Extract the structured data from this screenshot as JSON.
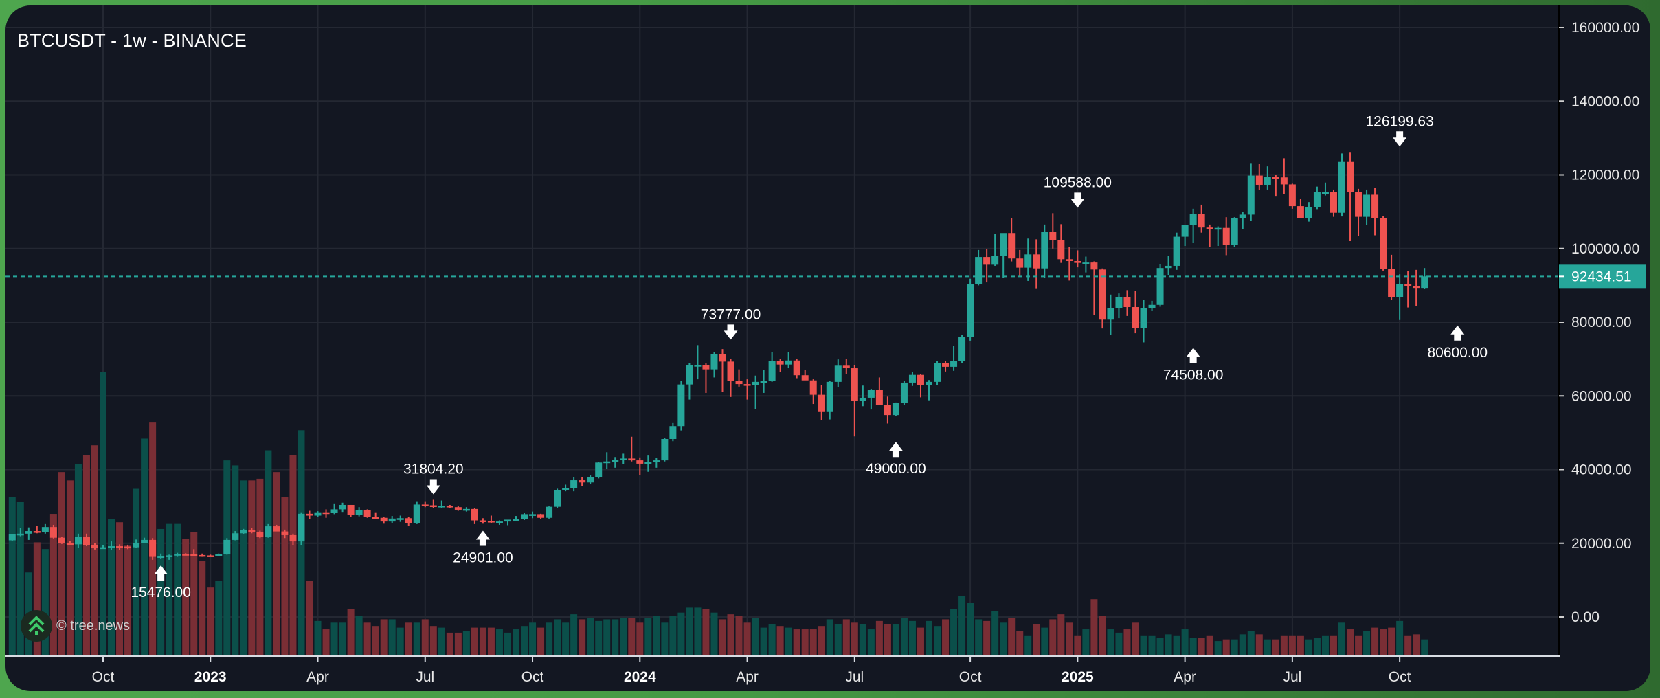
{
  "header": {
    "title": "BTCUSDT - 1w - BINANCE"
  },
  "watermark": {
    "icon": "double-chevron-up-tree-icon",
    "text": "© tree.news"
  },
  "colors": {
    "up": "#26a69a",
    "down": "#ef5350",
    "vol_up": "#0b4f4a",
    "vol_down": "#7a2e35",
    "background": "#131722",
    "grid": "#242833",
    "price_line": "#26a69a"
  },
  "price_tag": {
    "value": "92434.51",
    "numeric": 92434.51
  },
  "chart_data": {
    "type": "candlestick",
    "title": "BTCUSDT - 1w - BINANCE",
    "xlabel": "",
    "ylabel": "",
    "ylim": [
      -10000,
      170000
    ],
    "grid": true,
    "y_ticks": [
      {
        "value": 160000,
        "label": "160000.00"
      },
      {
        "value": 140000,
        "label": "140000.00"
      },
      {
        "value": 120000,
        "label": "120000.00"
      },
      {
        "value": 100000,
        "label": "100000.00"
      },
      {
        "value": 80000,
        "label": "80000.00"
      },
      {
        "value": 60000,
        "label": "60000.00"
      },
      {
        "value": 40000,
        "label": "40000.00"
      },
      {
        "value": 20000,
        "label": "20000.00"
      },
      {
        "value": 0,
        "label": "0.00"
      }
    ],
    "x_ticks": [
      {
        "label": "Oct",
        "index": 11,
        "year": false
      },
      {
        "label": "2023",
        "index": 24,
        "year": true
      },
      {
        "label": "Apr",
        "index": 37,
        "year": false
      },
      {
        "label": "Jul",
        "index": 50,
        "year": false
      },
      {
        "label": "Oct",
        "index": 63,
        "year": false
      },
      {
        "label": "2024",
        "index": 76,
        "year": true
      },
      {
        "label": "Apr",
        "index": 89,
        "year": false
      },
      {
        "label": "Jul",
        "index": 102,
        "year": false
      },
      {
        "label": "Oct",
        "index": 116,
        "year": false
      },
      {
        "label": "2025",
        "index": 129,
        "year": true
      },
      {
        "label": "Apr",
        "index": 142,
        "year": false
      },
      {
        "label": "Jul",
        "index": 155,
        "year": false
      },
      {
        "label": "Oct",
        "index": 168,
        "year": false
      }
    ],
    "annotations": [
      {
        "label": "15476.00",
        "index": 18,
        "price": 15476,
        "dir": "low"
      },
      {
        "label": "31804.20",
        "index": 51,
        "price": 31804.2,
        "dir": "high"
      },
      {
        "label": "24901.00",
        "index": 57,
        "price": 24901,
        "dir": "low"
      },
      {
        "label": "73777.00",
        "index": 87,
        "price": 73777,
        "dir": "high"
      },
      {
        "label": "49000.00",
        "index": 107,
        "price": 49000,
        "dir": "low"
      },
      {
        "label": "109588.00",
        "index": 129,
        "price": 109588,
        "dir": "high"
      },
      {
        "label": "74508.00",
        "index": 143,
        "price": 74508,
        "dir": "low"
      },
      {
        "label": "126199.63",
        "index": 168,
        "price": 126199.63,
        "dir": "high"
      },
      {
        "label": "80600.00",
        "index": 175,
        "price": 80600,
        "dir": "low"
      }
    ],
    "last_price": 92434.51,
    "series_columns": [
      "open",
      "high",
      "low",
      "close",
      "volume"
    ],
    "ohlcv": [
      [
        20800,
        22400,
        20700,
        22500,
        95
      ],
      [
        22500,
        24200,
        21900,
        22600,
        92
      ],
      [
        22600,
        24300,
        20900,
        23300,
        50
      ],
      [
        23300,
        24700,
        22700,
        23000,
        68
      ],
      [
        23000,
        25200,
        22600,
        24400,
        64
      ],
      [
        24400,
        25000,
        21300,
        21500,
        85
      ],
      [
        21500,
        21800,
        19800,
        20000,
        110
      ],
      [
        20000,
        20600,
        19400,
        19700,
        105
      ],
      [
        19700,
        22600,
        18700,
        21700,
        115
      ],
      [
        21700,
        22600,
        19200,
        19400,
        120
      ],
      [
        19400,
        20000,
        18300,
        18800,
        126
      ],
      [
        18800,
        19400,
        18700,
        18900,
        170
      ],
      [
        18900,
        20500,
        18100,
        19200,
        82
      ],
      [
        19200,
        19700,
        18200,
        19100,
        80
      ],
      [
        19100,
        19600,
        18400,
        18900,
        66
      ],
      [
        18900,
        21000,
        18700,
        20100,
        100
      ],
      [
        20100,
        21500,
        20000,
        20900,
        130
      ],
      [
        20900,
        21400,
        15500,
        16300,
        140
      ],
      [
        16300,
        17200,
        15700,
        16500,
        76
      ],
      [
        16500,
        16900,
        15500,
        16700,
        79
      ],
      [
        16700,
        17400,
        16300,
        17100,
        79
      ],
      [
        17100,
        17300,
        16800,
        17000,
        70
      ],
      [
        17000,
        18400,
        16500,
        16800,
        74
      ],
      [
        16800,
        17200,
        16300,
        16700,
        57
      ],
      [
        16700,
        16900,
        16300,
        16600,
        41
      ],
      [
        16600,
        17200,
        16500,
        17000,
        45
      ],
      [
        17000,
        21400,
        16900,
        20900,
        117
      ],
      [
        20900,
        23300,
        20800,
        22700,
        114
      ],
      [
        22700,
        23900,
        22500,
        23500,
        105
      ],
      [
        23500,
        24200,
        22700,
        23000,
        105
      ],
      [
        23000,
        23400,
        21400,
        21800,
        106
      ],
      [
        21800,
        25200,
        21500,
        24600,
        123
      ],
      [
        24600,
        25000,
        23400,
        23200,
        110
      ],
      [
        23200,
        23700,
        21400,
        22200,
        95
      ],
      [
        22200,
        22600,
        19500,
        20500,
        120
      ],
      [
        20500,
        28400,
        19500,
        28000,
        135
      ],
      [
        28000,
        28800,
        26600,
        27500,
        45
      ],
      [
        27500,
        28700,
        27200,
        28400,
        21
      ],
      [
        28400,
        29200,
        26900,
        28200,
        16
      ],
      [
        28200,
        30800,
        27900,
        29200,
        20
      ],
      [
        29200,
        31000,
        28500,
        30400,
        20
      ],
      [
        30400,
        30400,
        27100,
        27600,
        28
      ],
      [
        27600,
        29800,
        27300,
        29000,
        24
      ],
      [
        29000,
        29200,
        26900,
        27100,
        20
      ],
      [
        27100,
        28400,
        26700,
        26900,
        18
      ],
      [
        26900,
        27200,
        25300,
        25900,
        22
      ],
      [
        25900,
        27400,
        25500,
        26700,
        22
      ],
      [
        26700,
        27500,
        25800,
        26800,
        17
      ],
      [
        26800,
        27100,
        24800,
        25400,
        20
      ],
      [
        25400,
        31400,
        25200,
        30500,
        20
      ],
      [
        30500,
        31400,
        29800,
        30300,
        22
      ],
      [
        30300,
        31800,
        29500,
        30000,
        18
      ],
      [
        30000,
        31600,
        29600,
        30200,
        17
      ],
      [
        30200,
        30400,
        29500,
        29800,
        14
      ],
      [
        29800,
        30100,
        28800,
        29100,
        14
      ],
      [
        29100,
        29800,
        28600,
        29300,
        15
      ],
      [
        29300,
        29500,
        25200,
        26200,
        17
      ],
      [
        26200,
        26800,
        25300,
        26100,
        17
      ],
      [
        26100,
        27500,
        25500,
        25800,
        17
      ],
      [
        25800,
        26200,
        25000,
        25900,
        16
      ],
      [
        25900,
        26300,
        24900,
        26400,
        14
      ],
      [
        26400,
        27400,
        26200,
        26500,
        16
      ],
      [
        26500,
        28300,
        26300,
        27900,
        18
      ],
      [
        27900,
        28600,
        26800,
        27900,
        20
      ],
      [
        27900,
        28000,
        26600,
        26900,
        17
      ],
      [
        26900,
        30000,
        26700,
        29900,
        20
      ],
      [
        29900,
        34800,
        29600,
        34500,
        22
      ],
      [
        34500,
        35900,
        34100,
        35000,
        20
      ],
      [
        35000,
        37900,
        34100,
        37100,
        25
      ],
      [
        37100,
        37900,
        35500,
        36500,
        22
      ],
      [
        36500,
        38400,
        36100,
        37900,
        23
      ],
      [
        37900,
        42000,
        37600,
        41900,
        21
      ],
      [
        41900,
        44700,
        40100,
        42200,
        22
      ],
      [
        42200,
        43400,
        40500,
        42600,
        22
      ],
      [
        42600,
        44300,
        41500,
        43000,
        23
      ],
      [
        43000,
        48900,
        42200,
        42500,
        23
      ],
      [
        42500,
        43300,
        38500,
        41600,
        20
      ],
      [
        41600,
        43800,
        39400,
        42000,
        23
      ],
      [
        42000,
        43200,
        40500,
        42500,
        24
      ],
      [
        42500,
        48500,
        42200,
        48300,
        20
      ],
      [
        48300,
        52800,
        47700,
        51800,
        24
      ],
      [
        51800,
        64000,
        50600,
        63100,
        26
      ],
      [
        63100,
        69000,
        59000,
        68300,
        29
      ],
      [
        68300,
        73777,
        64500,
        68400,
        29
      ],
      [
        68400,
        68800,
        60800,
        67200,
        28
      ],
      [
        67200,
        71800,
        65000,
        71300,
        26
      ],
      [
        71300,
        72700,
        61000,
        69300,
        22
      ],
      [
        69300,
        70000,
        59700,
        64000,
        25
      ],
      [
        64000,
        67200,
        62500,
        63200,
        24
      ],
      [
        63200,
        64500,
        59000,
        62900,
        20
      ],
      [
        62900,
        65500,
        56500,
        63800,
        23
      ],
      [
        63800,
        67000,
        60800,
        64000,
        17
      ],
      [
        64000,
        71900,
        63800,
        69400,
        19
      ],
      [
        69400,
        70000,
        66400,
        68500,
        18
      ],
      [
        68500,
        71900,
        67500,
        69600,
        17
      ],
      [
        69600,
        70000,
        64800,
        65600,
        16
      ],
      [
        65600,
        67000,
        64500,
        64200,
        16
      ],
      [
        64200,
        64500,
        57800,
        60300,
        16
      ],
      [
        60300,
        63000,
        53500,
        55800,
        18
      ],
      [
        55800,
        64000,
        53600,
        63800,
        22
      ],
      [
        63800,
        69900,
        62400,
        68200,
        19
      ],
      [
        68200,
        70000,
        65900,
        67500,
        22
      ],
      [
        67500,
        68300,
        49000,
        58700,
        20
      ],
      [
        58700,
        62800,
        57200,
        59500,
        19
      ],
      [
        59500,
        61900,
        56300,
        61700,
        16
      ],
      [
        61700,
        65000,
        57800,
        57600,
        21
      ],
      [
        57600,
        59800,
        52500,
        54800,
        19
      ],
      [
        54800,
        58200,
        54600,
        58000,
        19
      ],
      [
        58000,
        64000,
        57500,
        63600,
        23
      ],
      [
        63600,
        66500,
        62700,
        65700,
        21
      ],
      [
        65700,
        66000,
        59600,
        63000,
        17
      ],
      [
        63000,
        64300,
        58800,
        63800,
        21
      ],
      [
        63800,
        69500,
        63000,
        68900,
        18
      ],
      [
        68900,
        69500,
        66600,
        67900,
        22
      ],
      [
        67900,
        73600,
        66800,
        69500,
        28
      ],
      [
        69500,
        76500,
        69000,
        75900,
        36
      ],
      [
        75900,
        91800,
        75000,
        90300,
        32
      ],
      [
        90300,
        99600,
        90000,
        97700,
        22
      ],
      [
        97700,
        99900,
        90800,
        95600,
        21
      ],
      [
        95600,
        104000,
        95300,
        98000,
        27
      ],
      [
        98000,
        101900,
        92000,
        104200,
        20
      ],
      [
        104200,
        108300,
        96500,
        97300,
        23
      ],
      [
        97300,
        99600,
        92500,
        94800,
        15
      ],
      [
        94800,
        102700,
        91200,
        98400,
        12
      ],
      [
        98400,
        102500,
        89200,
        94600,
        19
      ],
      [
        94600,
        106500,
        92000,
        104500,
        17
      ],
      [
        104500,
        109588,
        100000,
        102300,
        22
      ],
      [
        102300,
        106600,
        96100,
        97100,
        25
      ],
      [
        97100,
        100500,
        91300,
        96600,
        20
      ],
      [
        96600,
        99500,
        94900,
        96100,
        12
      ],
      [
        96100,
        97800,
        93500,
        96200,
        16
      ],
      [
        96200,
        96500,
        82000,
        94300,
        34
      ],
      [
        94300,
        94600,
        78300,
        80700,
        24
      ],
      [
        80700,
        87500,
        76600,
        83800,
        16
      ],
      [
        83800,
        87800,
        81100,
        86800,
        14
      ],
      [
        86800,
        88700,
        81700,
        84100,
        16
      ],
      [
        84100,
        88500,
        77000,
        78400,
        20
      ],
      [
        78400,
        86100,
        74508,
        83800,
        12
      ],
      [
        83800,
        85800,
        83100,
        84700,
        12
      ],
      [
        84700,
        95700,
        84200,
        94700,
        11
      ],
      [
        94700,
        97900,
        92800,
        95300,
        13
      ],
      [
        95300,
        104300,
        94200,
        103200,
        12
      ],
      [
        103200,
        106000,
        100700,
        106400,
        16
      ],
      [
        106400,
        110800,
        101500,
        109400,
        11
      ],
      [
        109400,
        111900,
        104300,
        105700,
        11
      ],
      [
        105700,
        106500,
        100400,
        105500,
        12
      ],
      [
        105500,
        106000,
        100700,
        105600,
        9
      ],
      [
        105600,
        108500,
        98200,
        100900,
        10
      ],
      [
        100900,
        108500,
        100400,
        108300,
        10
      ],
      [
        108300,
        110000,
        105200,
        109200,
        13
      ],
      [
        109200,
        123200,
        107500,
        119800,
        15
      ],
      [
        119800,
        123000,
        115900,
        117300,
        13
      ],
      [
        117300,
        122300,
        116000,
        119400,
        10
      ],
      [
        119400,
        120000,
        114100,
        119300,
        10
      ],
      [
        119300,
        124500,
        114700,
        117400,
        12
      ],
      [
        117400,
        117600,
        110800,
        111500,
        12
      ],
      [
        111500,
        113400,
        108900,
        108200,
        12
      ],
      [
        108200,
        112600,
        107300,
        111200,
        10
      ],
      [
        111200,
        116800,
        110700,
        115300,
        11
      ],
      [
        115300,
        117900,
        114400,
        115300,
        12
      ],
      [
        115300,
        116000,
        108600,
        109700,
        12
      ],
      [
        109700,
        125800,
        108700,
        123500,
        20
      ],
      [
        123500,
        126199.63,
        102000,
        115300,
        16
      ],
      [
        115300,
        116200,
        103500,
        108600,
        12
      ],
      [
        108600,
        116000,
        106300,
        114600,
        15
      ],
      [
        114600,
        116400,
        103600,
        108200,
        17
      ],
      [
        108200,
        108800,
        94000,
        94500,
        16
      ],
      [
        94500,
        98300,
        86000,
        86800,
        17
      ],
      [
        86800,
        93000,
        80600,
        90400,
        21
      ],
      [
        90400,
        93800,
        84000,
        89800,
        12
      ],
      [
        89800,
        94200,
        84300,
        89300,
        13
      ],
      [
        89300,
        94700,
        89000,
        92434.51,
        10
      ]
    ]
  },
  "axis": {
    "price_axis_width": 130
  }
}
